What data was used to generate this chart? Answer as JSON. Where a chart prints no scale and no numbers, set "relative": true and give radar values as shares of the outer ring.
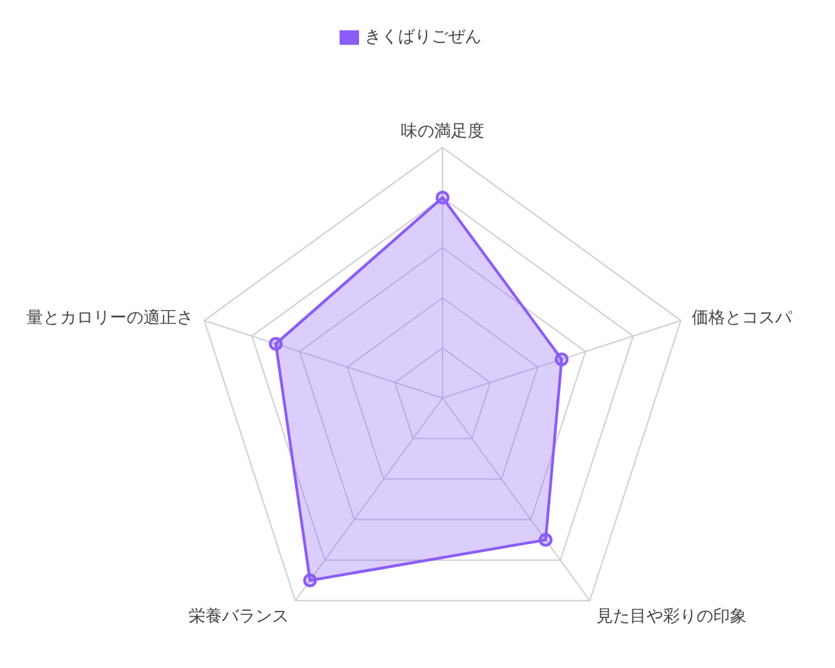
{
  "chart_data": {
    "type": "radar",
    "relative": true,
    "categories": [
      "味の満足度",
      "価格とコスパ",
      "見た目や彩りの印象",
      "栄養バランス",
      "量とカロリーの適正さ"
    ],
    "series": [
      {
        "name": "きくばりごぜん",
        "color": "#8b5cf6",
        "values": [
          0.8,
          0.5,
          0.7,
          0.9,
          0.7
        ]
      }
    ],
    "grid": true,
    "legend": "top",
    "marker": "circle"
  }
}
